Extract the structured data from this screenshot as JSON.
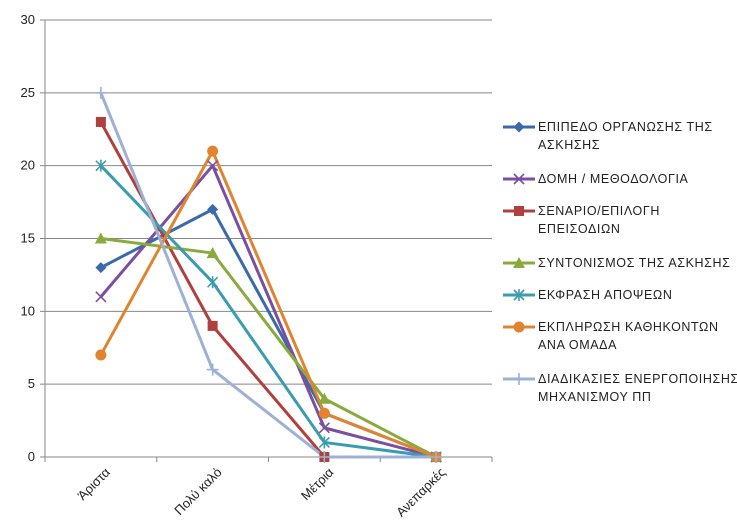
{
  "chart_data": {
    "type": "line",
    "categories": [
      "Άριστα",
      "Πολύ καλό",
      "Μέτρια",
      "Ανεπαρκές"
    ],
    "ylim": [
      0,
      30
    ],
    "yticks": [
      0,
      5,
      10,
      15,
      20,
      25,
      30
    ],
    "grid": true,
    "legend": "right",
    "series": [
      {
        "name": [
          "ΕΠΙΠΕΔΟ ΟΡΓΑΝΩΣΗΣ ΤΗΣ",
          "ΑΣΚΗΣΗΣ"
        ],
        "values": [
          13,
          17,
          3,
          0
        ],
        "color": "#3a6aaa",
        "marker": "diamond"
      },
      {
        "name": [
          "ΔΟΜΗ / ΜΕΘΟΔΟΛΟΓΙΑ"
        ],
        "values": [
          11,
          20,
          2,
          0
        ],
        "color": "#7a4fa0",
        "marker": "x"
      },
      {
        "name": [
          "ΣΕΝΑΡΙΟ/ΕΠΙΛΟΓΗ",
          "ΕΠΕΙΣΟΔΙΩΝ"
        ],
        "values": [
          23,
          9,
          0,
          0
        ],
        "color": "#b0403c",
        "marker": "square"
      },
      {
        "name": [
          "ΣΥΝΤΟΝΙΣΜΟΣ ΤΗΣ ΑΣΚΗΣΗΣ"
        ],
        "values": [
          15,
          14,
          4,
          0
        ],
        "color": "#8aaa3e",
        "marker": "triangle"
      },
      {
        "name": [
          "ΕΚΦΡΑΣΗ ΑΠΟΨΕΩΝ"
        ],
        "values": [
          20,
          12,
          1,
          0
        ],
        "color": "#3a9cb0",
        "marker": "asterisk"
      },
      {
        "name": [
          "ΕΚΠΛΗΡΩΣΗ ΚΑΘΗΚΟΝΤΩΝ",
          "ΑΝΑ ΟΜΑΔΑ"
        ],
        "values": [
          7,
          21,
          3,
          0
        ],
        "color": "#e0842f",
        "marker": "circle"
      },
      {
        "name": [
          "ΔΙΑΔΙΚΑΣΙΕΣ ΕΝΕΡΓΟΠΟΙΗΣΗΣ",
          "ΜΗΧΑΝΙΣΜΟΥ ΠΠ"
        ],
        "values": [
          25,
          6,
          0,
          0
        ],
        "color": "#9db0d6",
        "marker": "plus"
      }
    ]
  }
}
